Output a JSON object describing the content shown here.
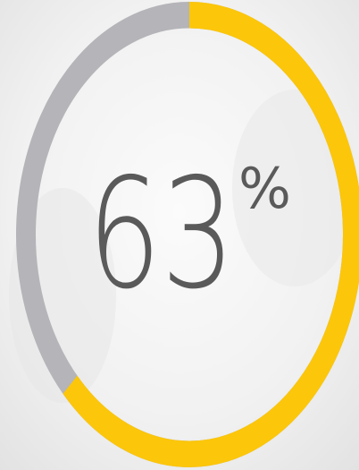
{
  "chart_data": {
    "type": "donut",
    "values": [
      63
    ],
    "value_labels": [
      "63%"
    ],
    "ylim": [
      0,
      100
    ],
    "color": "#fcc60a",
    "track_color": "#b4b4b9"
  }
}
